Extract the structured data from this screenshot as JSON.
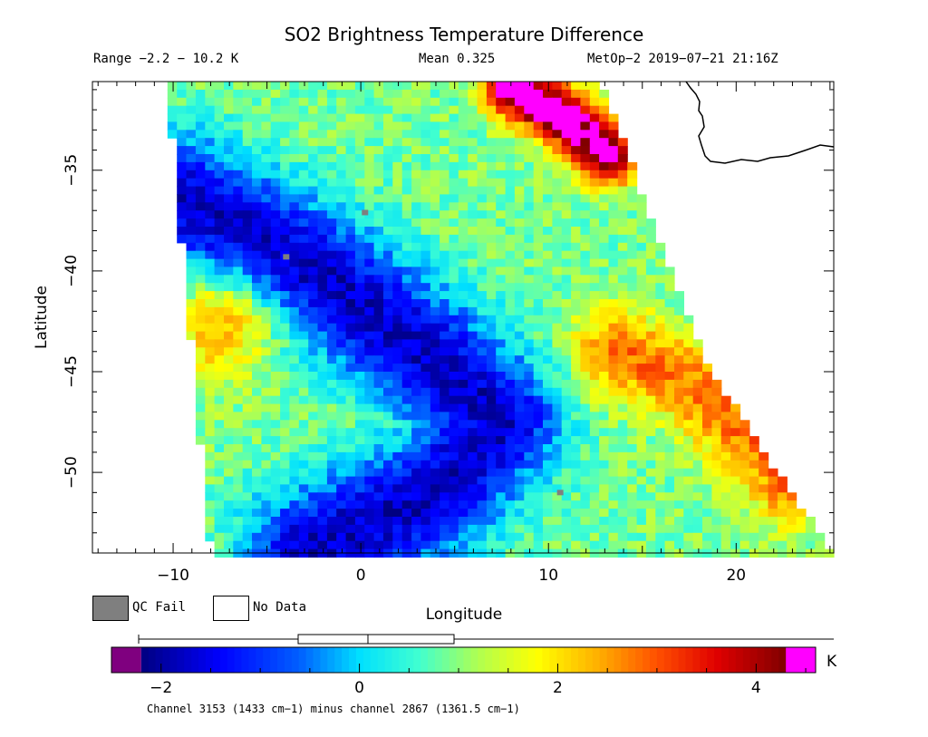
{
  "chart_data": {
    "type": "heatmap",
    "title": "SO2 Brightness Temperature Difference",
    "range_text": "Range −2.2 − 10.2 K",
    "mean_text": "Mean 0.325",
    "satellite_text": "MetOp−2 2019−07−21 21:16Z",
    "xlabel": "Longitude",
    "ylabel": "Latitude",
    "xlim": [
      -14.3,
      25.2
    ],
    "ylim": [
      -54,
      -30.6
    ],
    "xticks": [
      -10,
      0,
      10,
      20
    ],
    "xtick_labels": [
      "−10",
      "0",
      "10",
      "20"
    ],
    "yticks": [
      -35,
      -40,
      -45,
      -50
    ],
    "ytick_labels": [
      "−35",
      "−40",
      "−45",
      "−50"
    ],
    "value_range": [
      -2.2,
      10.2
    ],
    "mean": 0.325,
    "units": "K",
    "colorbar": {
      "min": -2.5,
      "max": 4.6,
      "ticks": [
        -2,
        0,
        2,
        4
      ],
      "tick_labels": [
        "−2",
        "0",
        "2",
        "4"
      ],
      "below_color": "#7f007f",
      "above_color": "#ff00ff",
      "stops": [
        [
          -2.2,
          "#000080"
        ],
        [
          -1.4,
          "#0000ff"
        ],
        [
          -0.6,
          "#0060ff"
        ],
        [
          0.0,
          "#00e0ff"
        ],
        [
          0.6,
          "#40ffd0"
        ],
        [
          1.2,
          "#b0ff50"
        ],
        [
          1.8,
          "#ffff00"
        ],
        [
          2.4,
          "#ffb000"
        ],
        [
          3.0,
          "#ff5000"
        ],
        [
          3.6,
          "#e00000"
        ],
        [
          4.3,
          "#800000"
        ]
      ],
      "boxplot": {
        "whisker_low": -2.2,
        "q1": -0.6,
        "median": 0.1,
        "q3": 0.9,
        "whisker_high": 4.6
      }
    },
    "swath_edges": [
      {
        "lat": -30.6,
        "west": -10.3,
        "east": 12.8
      },
      {
        "lat": -40,
        "west": -9.4,
        "east": 16.5
      },
      {
        "lat": -45,
        "west": -8.9,
        "east": 18.7
      },
      {
        "lat": -50,
        "west": -8.4,
        "east": 22.2
      },
      {
        "lat": -54,
        "west": -8.0,
        "east": 25.2
      }
    ],
    "features": [
      {
        "name": "minimum band",
        "points": [
          [
            -9.5,
            -36.5
          ],
          [
            -2.5,
            -40
          ],
          [
            4,
            -44.5
          ],
          [
            7.5,
            -47.5
          ],
          [
            4,
            -51
          ],
          [
            -3,
            -54
          ]
        ],
        "value": -1.8,
        "width": 3.2
      },
      {
        "name": "warm patch west",
        "center": [
          -7.5,
          -43
        ],
        "value": 2.3,
        "radius": 2.6
      },
      {
        "name": "warm swath edge",
        "points": [
          [
            13.5,
            -44
          ],
          [
            17.5,
            -45.5
          ],
          [
            21,
            -48.5
          ],
          [
            22.8,
            -50.5
          ]
        ],
        "value": 2.8,
        "width": 2.2
      },
      {
        "name": "high values north",
        "points": [
          [
            8,
            -30.8
          ],
          [
            11,
            -32.5
          ],
          [
            13.2,
            -34.2
          ]
        ],
        "value": 5.0,
        "width": 1.5
      }
    ],
    "qc_fail_points": [
      [
        0.2,
        -37.1
      ],
      [
        -4.0,
        -39.3
      ],
      [
        10.6,
        -51.0
      ]
    ],
    "legend_entries": [
      "QC Fail",
      "No Data"
    ],
    "footer": "Channel 3153 (1433 cm−1) minus channel 2867 (1361.5 cm−1)"
  }
}
